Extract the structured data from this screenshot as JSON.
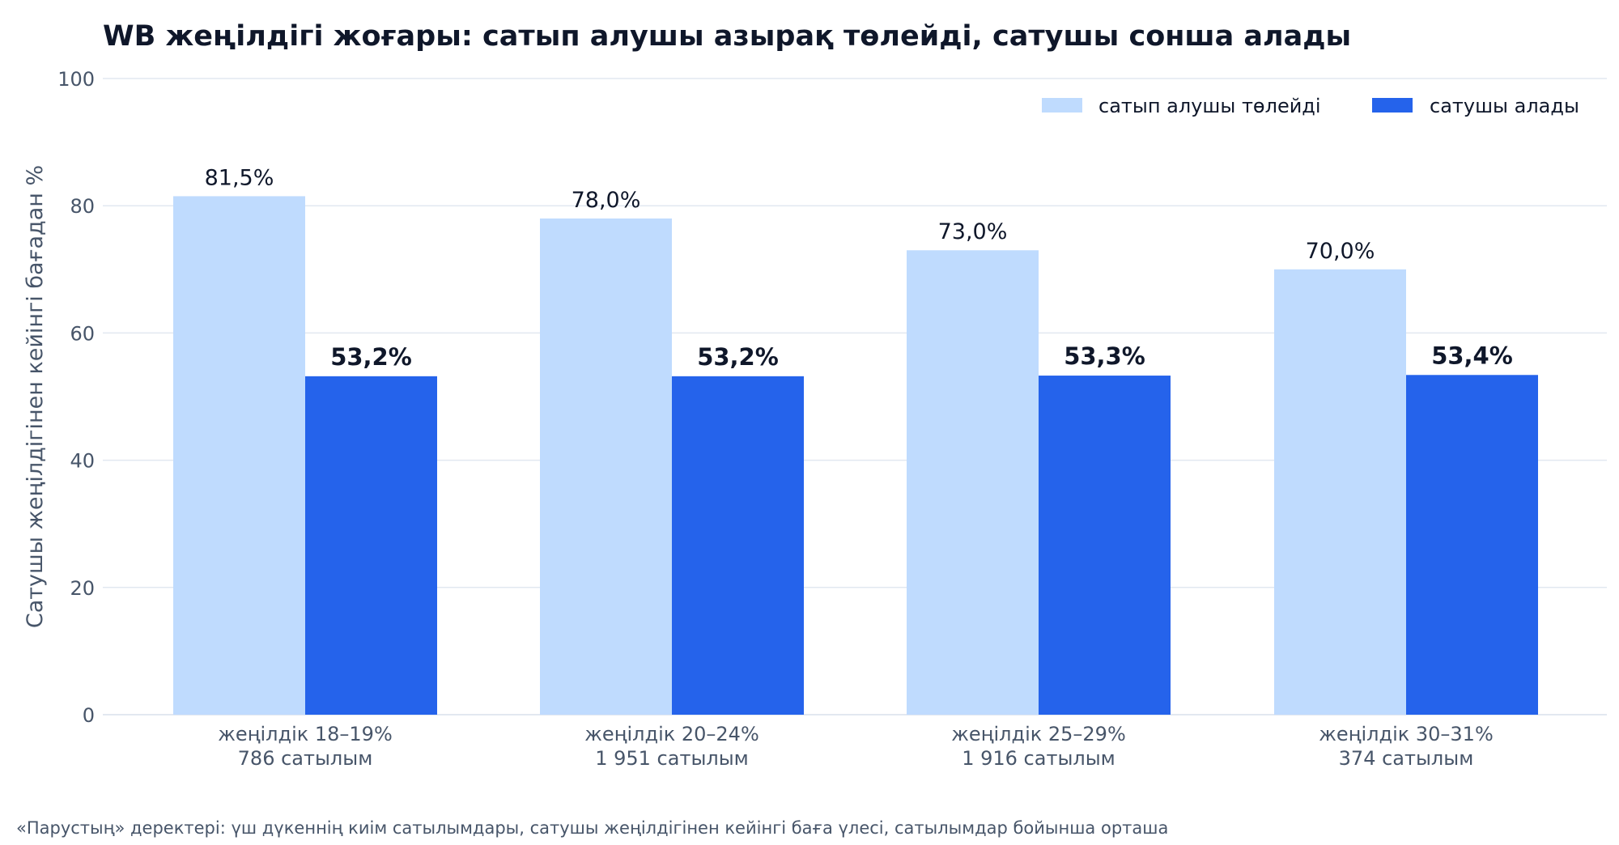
{
  "chart_data": {
    "type": "bar",
    "title": "WB жеңілдігі жоғары: сатып алушы азырақ төлейді, сатушы сонша алады",
    "ylabel": "Сатушы жеңілдігінен кейінгі бағадан %",
    "xlabel": "",
    "ylim": [
      0,
      100
    ],
    "yticks": [
      0,
      20,
      40,
      60,
      80,
      100
    ],
    "grid": true,
    "legend_position": "top-right",
    "categories": [
      [
        "жеңілдік 18–19%",
        "786 сатылым"
      ],
      [
        "жеңілдік 20–24%",
        "1 951 сатылым"
      ],
      [
        "жеңілдік 25–29%",
        "1 916 сатылым"
      ],
      [
        "жеңілдік 30–31%",
        "374 сатылым"
      ]
    ],
    "series": [
      {
        "name": "сатып алушы төлейді",
        "color": "#bfdbfe",
        "values": [
          81.5,
          78.0,
          73.0,
          70.0
        ],
        "labels": [
          "81,5%",
          "78,0%",
          "73,0%",
          "70,0%"
        ],
        "label_bold": false
      },
      {
        "name": "сатушы алады",
        "color": "#2563eb",
        "values": [
          53.2,
          53.2,
          53.3,
          53.4
        ],
        "labels": [
          "53,2%",
          "53,2%",
          "53,3%",
          "53,4%"
        ],
        "label_bold": true
      }
    ],
    "footnote": "«Парустың» деректері: үш дүкеннің киім сатылымдары, сатушы жеңілдігінен кейінгі баға үлесі, сатылымдар бойынша орташа",
    "colors": {
      "title": "#0f172a",
      "axis_text": "#475569",
      "grid": "#e2e8f0",
      "label_text": "#0f172a"
    }
  }
}
